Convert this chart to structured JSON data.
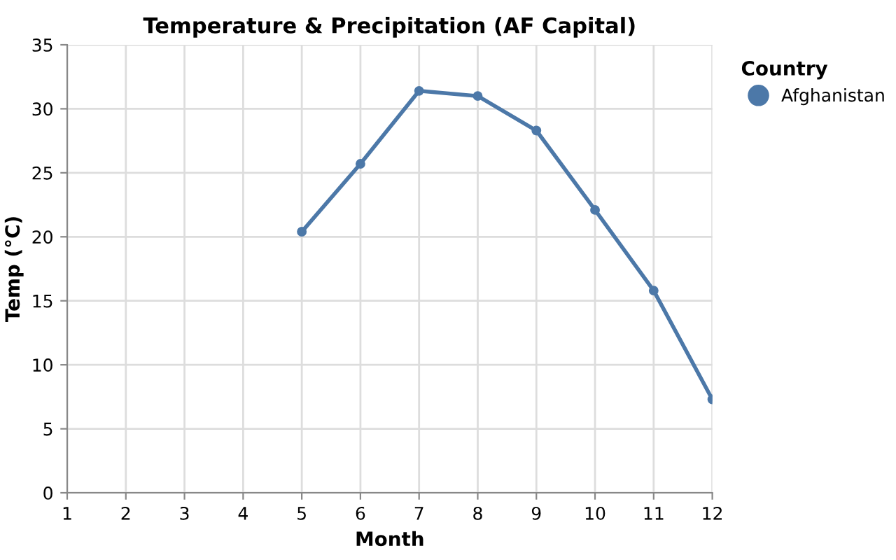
{
  "chart_data": {
    "type": "line",
    "title": "Temperature & Precipitation (AF Capital)",
    "xlabel": "Month",
    "ylabel": "Temp (°C)",
    "legend_title": "Country",
    "x": [
      5,
      6,
      7,
      8,
      9,
      10,
      11,
      12
    ],
    "series": [
      {
        "name": "Afghanistan",
        "color": "#4c78a8",
        "values": [
          20.4,
          25.7,
          31.4,
          31.0,
          28.3,
          22.1,
          15.8,
          7.3
        ]
      }
    ],
    "xlim": [
      1,
      12
    ],
    "xticks": [
      1,
      2,
      3,
      4,
      5,
      6,
      7,
      8,
      9,
      10,
      11,
      12
    ],
    "ylim": [
      0,
      35
    ],
    "yticks": [
      0,
      5,
      10,
      15,
      20,
      25,
      30,
      35
    ],
    "grid": true,
    "legend": "top right",
    "marker": "circle",
    "line_style": "solid"
  }
}
